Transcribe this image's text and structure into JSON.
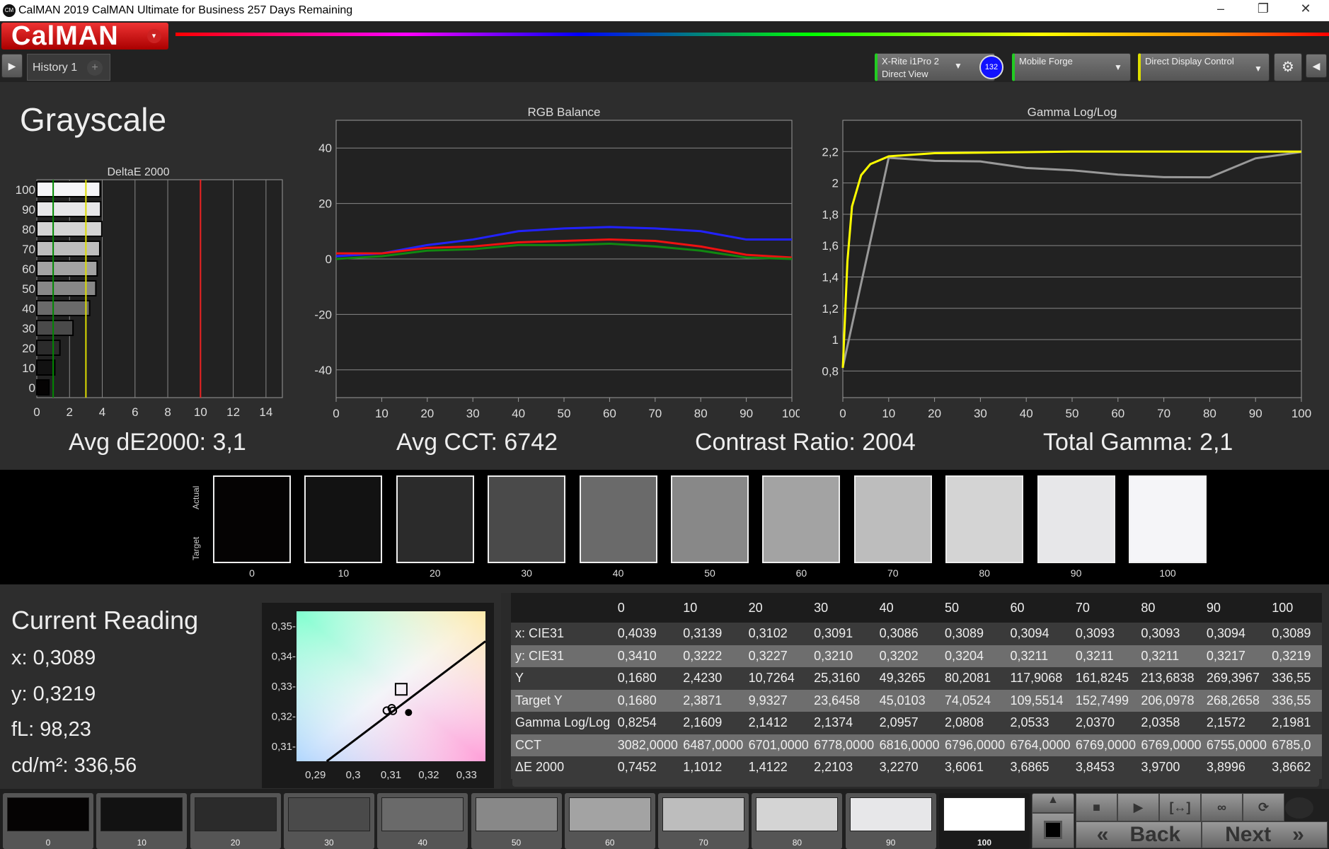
{
  "window": {
    "title": "CalMAN 2019 CalMAN Ultimate for Business 257 Days Remaining",
    "logo_text": "CM",
    "minimize": "–",
    "restore": "❐",
    "close": "✕"
  },
  "app": {
    "logo": "CalMAN",
    "menu_glyph": "▾"
  },
  "tabs": {
    "items": [
      {
        "label": "History 1"
      }
    ],
    "add": "+",
    "left_arrow": "▶",
    "right_arrow": "◀"
  },
  "devices": [
    {
      "line1": "X-Rite i1Pro 2",
      "line2": "Direct View",
      "indicator": "#22cc22",
      "badge": "132"
    },
    {
      "line1": "Mobile Forge",
      "line2": "",
      "indicator": "#22cc22"
    },
    {
      "line1": "Direct Display Control",
      "line2": "",
      "indicator": "#dddd00"
    }
  ],
  "page": {
    "title": "Grayscale"
  },
  "summary": {
    "avg_de": "Avg dE2000: 3,1",
    "avg_cct": "Avg CCT: 6742",
    "contrast": "Contrast Ratio: 2004",
    "gamma": "Total Gamma: 2,1"
  },
  "chart_data": [
    {
      "type": "bar",
      "title": "DeltaE 2000",
      "orientation": "horizontal",
      "categories": [
        "0",
        "10",
        "20",
        "30",
        "40",
        "50",
        "60",
        "70",
        "80",
        "90",
        "100"
      ],
      "values": [
        0.7452,
        1.1012,
        1.4122,
        2.2103,
        3.227,
        3.6061,
        3.6865,
        3.8453,
        3.97,
        3.8996,
        3.8662
      ],
      "xlim": [
        0,
        15
      ],
      "xticks": [
        0,
        2,
        4,
        6,
        8,
        10,
        12,
        14
      ],
      "reference_lines": [
        {
          "value": 1,
          "color": "#008800"
        },
        {
          "value": 3,
          "color": "#dddd00"
        },
        {
          "value": 10,
          "color": "#ee2222"
        }
      ],
      "grid": true
    },
    {
      "type": "line",
      "title": "RGB Balance",
      "x": [
        0,
        10,
        20,
        30,
        40,
        50,
        60,
        70,
        80,
        90,
        100
      ],
      "xlim": [
        0,
        100
      ],
      "ylim": [
        -50,
        50
      ],
      "xticks": [
        0,
        10,
        20,
        30,
        40,
        50,
        60,
        70,
        80,
        90,
        100
      ],
      "yticks": [
        -40,
        -20,
        0,
        20,
        40
      ],
      "grid": true,
      "series": [
        {
          "color": "#2222ff",
          "values": [
            1,
            2,
            5,
            7,
            10,
            11,
            11.5,
            11,
            10,
            7,
            7
          ]
        },
        {
          "color": "#ee1111",
          "values": [
            2,
            2,
            4,
            4.5,
            6,
            6.5,
            7,
            6.5,
            4.5,
            1.5,
            0.5
          ]
        },
        {
          "color": "#118811",
          "values": [
            0,
            1,
            3,
            3.5,
            5,
            5,
            5.5,
            4.5,
            3,
            0.5,
            0
          ]
        }
      ]
    },
    {
      "type": "line",
      "title": "Gamma Log/Log",
      "xlim": [
        0,
        100
      ],
      "ylim": [
        0.63,
        2.4
      ],
      "xticks": [
        0,
        10,
        20,
        30,
        40,
        50,
        60,
        70,
        80,
        90,
        100
      ],
      "yticks": [
        0.8,
        1,
        1.2,
        1.4,
        1.6,
        1.8,
        2,
        2.2
      ],
      "ytick_labels": [
        "0,8",
        "1",
        "1,2",
        "1,4",
        "1,6",
        "1,8",
        "2",
        "2,2"
      ],
      "grid": true,
      "series": [
        {
          "color": "#999999",
          "x": [
            0,
            10,
            20,
            30,
            40,
            50,
            60,
            70,
            80,
            90,
            100
          ],
          "values": [
            0.8254,
            2.1609,
            2.1412,
            2.1374,
            2.0957,
            2.0808,
            2.0533,
            2.037,
            2.0358,
            2.1572,
            2.1981
          ]
        },
        {
          "color": "#ffff00",
          "x": [
            0,
            1,
            2,
            4,
            6,
            10,
            20,
            50,
            100
          ],
          "values": [
            0.82,
            1.5,
            1.85,
            2.05,
            2.12,
            2.17,
            2.19,
            2.2,
            2.2
          ]
        }
      ]
    },
    {
      "type": "scatter",
      "xlim": [
        0.285,
        0.335
      ],
      "ylim": [
        0.305,
        0.355
      ],
      "xticks": [
        0.29,
        0.3,
        0.31,
        0.32,
        0.33
      ],
      "xtick_labels": [
        "0,29",
        "0,3",
        "0,31",
        "0,32",
        "0,33"
      ],
      "yticks": [
        0.31,
        0.32,
        0.33,
        0.34,
        0.35
      ],
      "ytick_labels": [
        "0,31-",
        "0,32-",
        "0,33-",
        "0,34-",
        "0,35-"
      ],
      "target": {
        "x": 0.3127,
        "y": 0.329
      },
      "points": [
        {
          "x": 0.3102,
          "y": 0.3227
        },
        {
          "x": 0.3105,
          "y": 0.3218
        },
        {
          "x": 0.3089,
          "y": 0.3219
        }
      ],
      "current": {
        "x": 0.3139,
        "y": 0.3222
      },
      "locus": [
        [
          0.293,
          0.305
        ],
        [
          0.335,
          0.345
        ]
      ]
    }
  ],
  "patches": {
    "labels": [
      "0",
      "10",
      "20",
      "30",
      "40",
      "50",
      "60",
      "70",
      "80",
      "90",
      "100"
    ],
    "colors": [
      "#050303",
      "#121212",
      "#2b2b2b",
      "#4a4a4a",
      "#6a6a6a",
      "#888888",
      "#a3a3a3",
      "#bdbdbd",
      "#d4d4d4",
      "#e7e7e9",
      "#f5f5f8"
    ],
    "actual_label": "Actual",
    "target_label": "Target"
  },
  "reading": {
    "title": "Current Reading",
    "x": "x: 0,3089",
    "y": "y: 0,3219",
    "fl": "fL: 98,23",
    "cdm2": "cd/m²: 336,56"
  },
  "table": {
    "columns": [
      "",
      "0",
      "10",
      "20",
      "30",
      "40",
      "50",
      "60",
      "70",
      "80",
      "90",
      "100"
    ],
    "rows": [
      [
        "x: CIE31",
        "0,4039",
        "0,3139",
        "0,3102",
        "0,3091",
        "0,3086",
        "0,3089",
        "0,3094",
        "0,3093",
        "0,3093",
        "0,3094",
        "0,3089"
      ],
      [
        "y: CIE31",
        "0,3410",
        "0,3222",
        "0,3227",
        "0,3210",
        "0,3202",
        "0,3204",
        "0,3211",
        "0,3211",
        "0,3211",
        "0,3217",
        "0,3219"
      ],
      [
        "Y",
        "0,1680",
        "2,4230",
        "10,7264",
        "25,3160",
        "49,3265",
        "80,2081",
        "117,9068",
        "161,8245",
        "213,6838",
        "269,3967",
        "336,55"
      ],
      [
        "Target Y",
        "0,1680",
        "2,3871",
        "9,9327",
        "23,6458",
        "45,0103",
        "74,0524",
        "109,5514",
        "152,7499",
        "206,0978",
        "268,2658",
        "336,55"
      ],
      [
        "Gamma Log/Log",
        "0,8254",
        "2,1609",
        "2,1412",
        "2,1374",
        "2,0957",
        "2,0808",
        "2,0533",
        "2,0370",
        "2,0358",
        "2,1572",
        "2,1981"
      ],
      [
        "CCT",
        "3082,0000",
        "6487,0000",
        "6701,0000",
        "6778,0000",
        "6816,0000",
        "6796,0000",
        "6764,0000",
        "6769,0000",
        "6769,0000",
        "6755,0000",
        "6785,0"
      ],
      [
        "ΔE 2000",
        "0,7452",
        "1,1012",
        "1,4122",
        "2,2103",
        "3,2270",
        "3,6061",
        "3,6865",
        "3,8453",
        "3,9700",
        "3,8996",
        "3,8662"
      ]
    ]
  },
  "bottom": {
    "selected": "100",
    "back": "Back",
    "next": "Next",
    "back_glyph": "«",
    "next_glyph": "»",
    "up_glyph": "▲",
    "controls": [
      "■",
      "▶",
      "[↔]",
      "∞",
      "⟳"
    ]
  }
}
